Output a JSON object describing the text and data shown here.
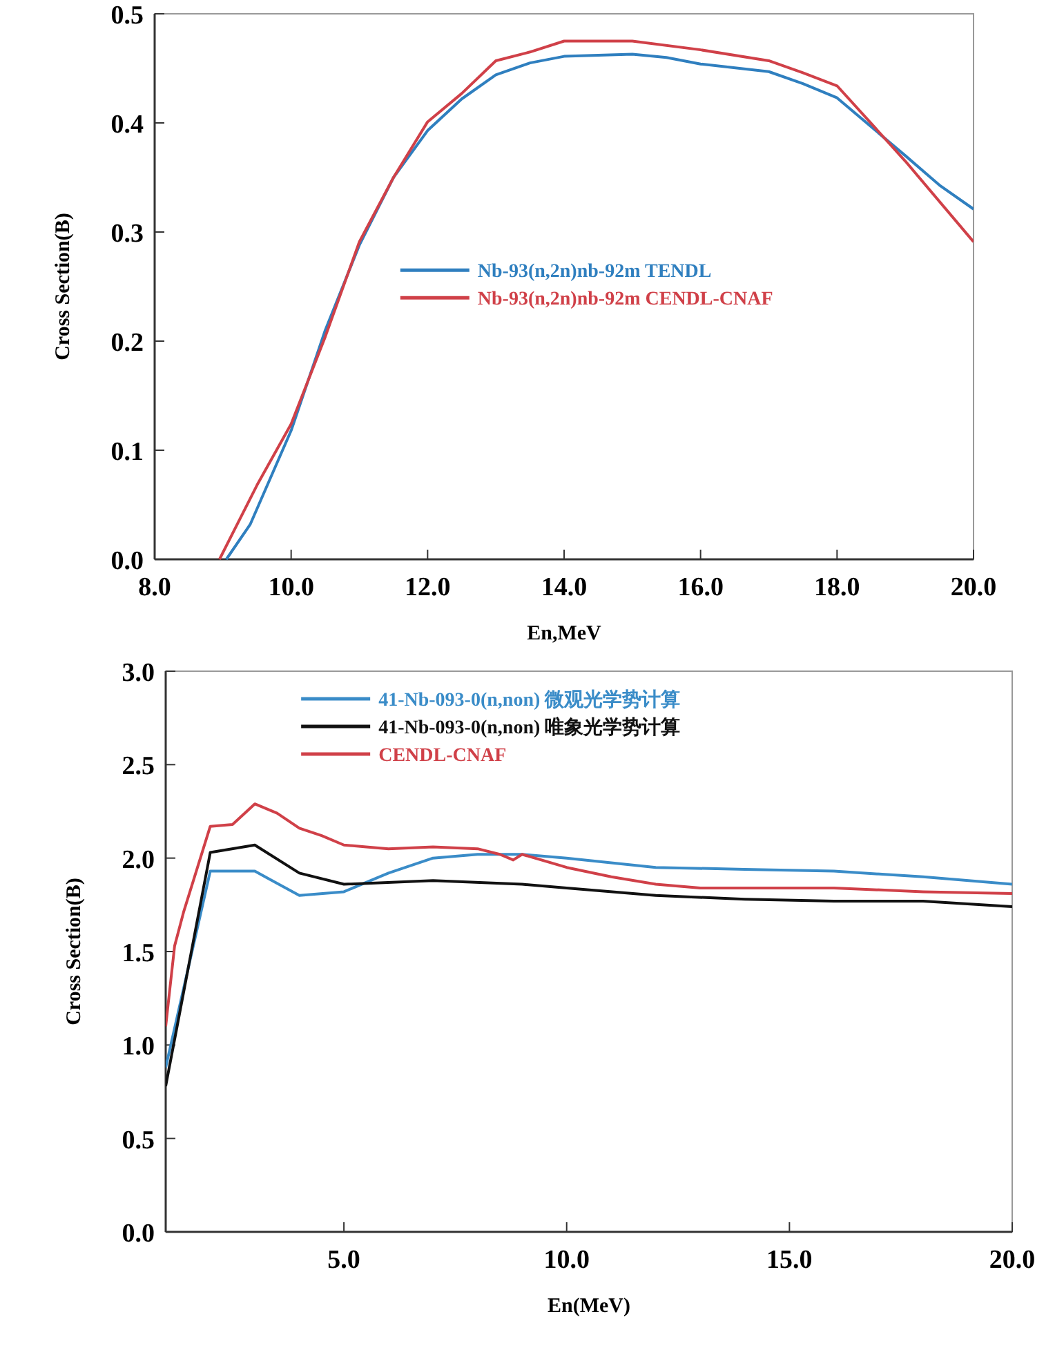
{
  "chart_data": [
    {
      "type": "line",
      "xlabel": "En,MeV",
      "ylabel": "Cross Section(B)",
      "xlim": [
        8,
        20
      ],
      "ylim": [
        0,
        0.5
      ],
      "xticks": [
        {
          "value": 8,
          "label": "8.0"
        },
        {
          "value": 10,
          "label": "10.0"
        },
        {
          "value": 12,
          "label": "12.0"
        },
        {
          "value": 14,
          "label": "14.0"
        },
        {
          "value": 16,
          "label": "16.0"
        },
        {
          "value": 18,
          "label": "18.0"
        },
        {
          "value": 20,
          "label": "20.0"
        }
      ],
      "yticks": [
        {
          "value": 0,
          "label": "0.0"
        },
        {
          "value": 0.1,
          "label": "0.1"
        },
        {
          "value": 0.2,
          "label": "0.2"
        },
        {
          "value": 0.3,
          "label": "0.3"
        },
        {
          "value": 0.4,
          "label": "0.4"
        },
        {
          "value": 0.5,
          "label": "0.5"
        }
      ],
      "grid": false,
      "legend": "center",
      "marker": "none",
      "line_style": "solid",
      "series": [
        {
          "name": "Nb-93(n,2n)nb-92m TENDL",
          "color": "#2f7fbf",
          "x": [
            9.05,
            9.4,
            10,
            10.5,
            11,
            11.5,
            12,
            12.5,
            13,
            13.5,
            14,
            15,
            15.5,
            16,
            17,
            17.5,
            18,
            19,
            19.5,
            20
          ],
          "values": [
            0,
            0.032,
            0.118,
            0.21,
            0.288,
            0.35,
            0.393,
            0.422,
            0.444,
            0.455,
            0.461,
            0.463,
            0.46,
            0.454,
            0.447,
            0.436,
            0.423,
            0.37,
            0.343,
            0.321
          ]
        },
        {
          "name": "Nb-93(n,2n)nb-92m CENDL-CNAF",
          "color": "#d04048",
          "x": [
            8.95,
            9.5,
            10,
            10.5,
            11,
            11.5,
            12,
            12.5,
            13,
            13.5,
            14,
            15,
            16,
            17,
            17.5,
            18,
            19,
            20
          ],
          "values": [
            0,
            0.068,
            0.124,
            0.204,
            0.291,
            0.35,
            0.401,
            0.427,
            0.457,
            0.465,
            0.475,
            0.475,
            0.467,
            0.457,
            0.446,
            0.434,
            0.365,
            0.291
          ]
        }
      ]
    },
    {
      "type": "line",
      "xlabel": "En(MeV)",
      "ylabel": "Cross Section(B)",
      "xlim": [
        1,
        20
      ],
      "ylim": [
        0,
        3
      ],
      "xticks": [
        {
          "value": 5,
          "label": "5.0"
        },
        {
          "value": 10,
          "label": "10.0"
        },
        {
          "value": 15,
          "label": "15.0"
        },
        {
          "value": 20,
          "label": "20.0"
        }
      ],
      "yticks": [
        {
          "value": 0,
          "label": "0.0"
        },
        {
          "value": 0.5,
          "label": "0.5"
        },
        {
          "value": 1,
          "label": "1.0"
        },
        {
          "value": 1.5,
          "label": "1.5"
        },
        {
          "value": 2,
          "label": "2.0"
        },
        {
          "value": 2.5,
          "label": "2.5"
        },
        {
          "value": 3,
          "label": "3.0"
        }
      ],
      "grid": false,
      "legend": "top left",
      "marker": "none",
      "line_style": "solid",
      "series": [
        {
          "name": "41-Nb-093-0(n,non) 微观光学势计算",
          "color": "#3a8cc8",
          "x": [
            1,
            2,
            3,
            4,
            5,
            6,
            7,
            8,
            9,
            10,
            12,
            14,
            16,
            18,
            20
          ],
          "values": [
            0.88,
            1.93,
            1.93,
            1.8,
            1.82,
            1.92,
            2.0,
            2.02,
            2.02,
            2.0,
            1.95,
            1.94,
            1.93,
            1.9,
            1.86
          ]
        },
        {
          "name": "41-Nb-093-0(n,non) 唯象光学势计算",
          "color": "#111111",
          "x": [
            1,
            2,
            3,
            4,
            5,
            7,
            9,
            10,
            12,
            14,
            16,
            18,
            20
          ],
          "values": [
            0.78,
            2.03,
            2.07,
            1.92,
            1.86,
            1.88,
            1.86,
            1.84,
            1.8,
            1.78,
            1.77,
            1.77,
            1.74
          ]
        },
        {
          "name": "CENDL-CNAF",
          "color": "#d04048",
          "x": [
            1,
            1.2,
            1.4,
            2,
            2.5,
            3,
            3.5,
            4,
            4.5,
            5,
            5.5,
            6,
            7,
            8,
            8.5,
            8.8,
            9,
            10,
            11,
            12,
            13,
            14,
            16,
            18,
            20
          ],
          "values": [
            1.1,
            1.53,
            1.71,
            2.17,
            2.18,
            2.29,
            2.24,
            2.16,
            2.12,
            2.07,
            2.06,
            2.05,
            2.06,
            2.05,
            2.02,
            1.99,
            2.02,
            1.95,
            1.9,
            1.86,
            1.84,
            1.84,
            1.84,
            1.82,
            1.81
          ]
        }
      ]
    }
  ]
}
